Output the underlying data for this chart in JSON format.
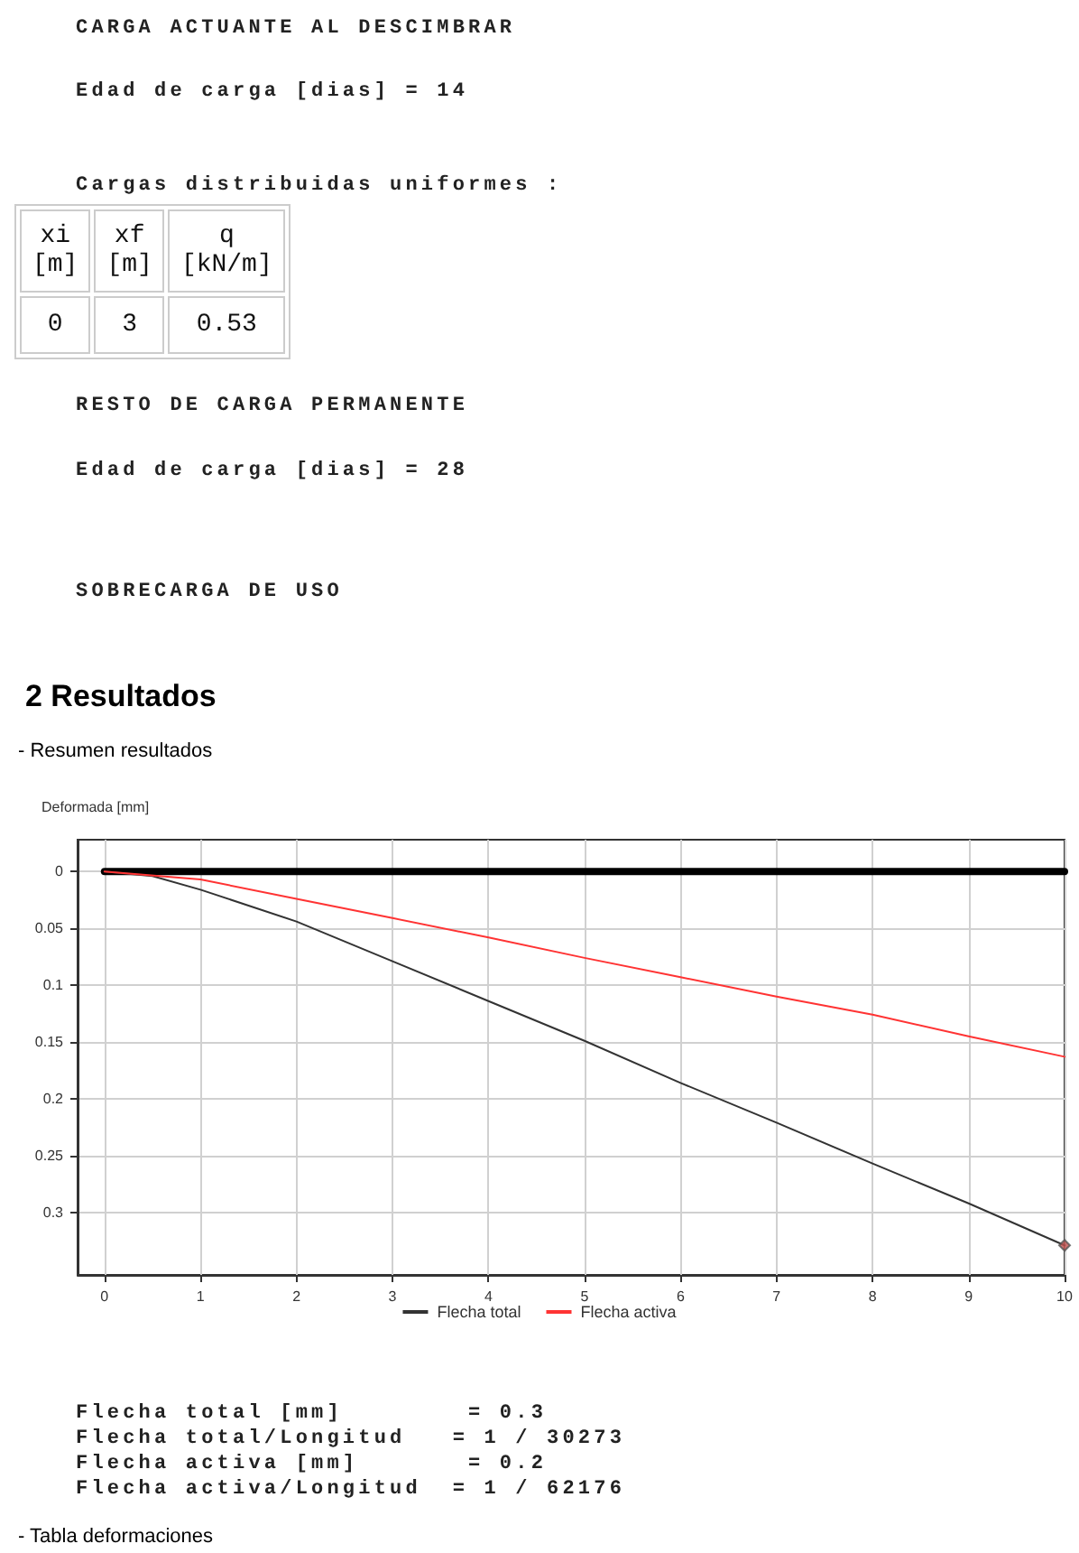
{
  "chart_data": {
    "type": "line",
    "title": "2 Resultados",
    "subtitle": "- Resumen resultados",
    "ylabel": "Deformada [mm]",
    "annotations": [
      "CARGA ACTUANTE AL DESCIMBRAR",
      "Edad de carga [dias] = 14",
      "Cargas distribuidas uniformes :",
      "xi\n[m]",
      "xf\n[m]",
      "q\n[kN/m]",
      "0",
      "3",
      "0.53",
      "RESTO DE CARGA PERMANENTE",
      "Edad de carga [dias] = 28",
      "SOBRECARGA DE USO",
      "Flecha total [mm]        = 0.3",
      "Flecha total/Longitud   = 1 / 30273",
      "Flecha activa [mm]       = 0.2",
      "Flecha activa/Longitud  = 1 / 62176",
      "- Tabla deformaciones"
    ],
    "xlim": [
      -0.28,
      10
    ],
    "xticks": [
      0,
      1,
      2,
      3,
      4,
      5,
      6,
      7,
      8,
      9,
      10
    ],
    "ylim": [
      0.355,
      -0.028
    ],
    "yticks": [
      0,
      0.05,
      0.1,
      0.15,
      0.2,
      0.25,
      0.3
    ],
    "grid": true,
    "legend": "bottom",
    "line_style": "solid",
    "marker": "none",
    "series": [
      {
        "color": "#000000",
        "x": [
          0,
          10
        ],
        "values": [
          0,
          0
        ]
      },
      {
        "name": "Flecha total",
        "color": "#333333",
        "x": [
          0,
          0.5,
          1,
          2,
          3,
          4,
          5,
          6,
          7,
          8,
          9,
          10
        ],
        "values": [
          0,
          0.004,
          0.016,
          0.044,
          0.079,
          0.114,
          0.149,
          0.186,
          0.221,
          0.257,
          0.292,
          0.329
        ]
      },
      {
        "name": "Flecha activa",
        "color": "#ff3333",
        "x": [
          0,
          1,
          2,
          3,
          4,
          5,
          6,
          7,
          8,
          9,
          10
        ],
        "values": [
          0,
          0.007,
          0.024,
          0.041,
          0.058,
          0.076,
          0.093,
          0.11,
          0.126,
          0.145,
          0.163
        ]
      },
      {
        "type": "scatter",
        "marker": "diamond",
        "color": "#c0504d",
        "x": [
          10
        ],
        "values": [
          0.329
        ]
      }
    ]
  }
}
